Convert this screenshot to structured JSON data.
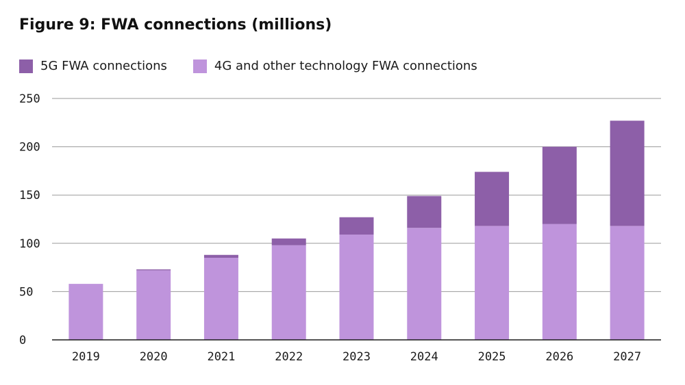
{
  "chart_data": {
    "type": "bar",
    "stacked": true,
    "title": "Figure 9: FWA connections (millions)",
    "xlabel": "",
    "ylabel": "",
    "categories": [
      "2019",
      "2020",
      "2021",
      "2022",
      "2023",
      "2024",
      "2025",
      "2026",
      "2027"
    ],
    "series": [
      {
        "name": "4G and other technology FWA connections",
        "color": "#bf94dc",
        "values": [
          58,
          72,
          85,
          98,
          109,
          116,
          118,
          120,
          118
        ]
      },
      {
        "name": "5G FWA connections",
        "color": "#8d5fa8",
        "values": [
          0,
          1,
          3,
          7,
          18,
          33,
          56,
          80,
          109
        ]
      }
    ],
    "ylim": [
      0,
      250
    ],
    "yticks": [
      "0",
      "50",
      "100",
      "150",
      "200",
      "250"
    ],
    "grid": true,
    "legend_position": "top-left"
  },
  "legend": [
    {
      "label": "5G FWA connections",
      "color": "#8d5fa8"
    },
    {
      "label": "4G and other technology FWA connections",
      "color": "#bf94dc"
    }
  ]
}
